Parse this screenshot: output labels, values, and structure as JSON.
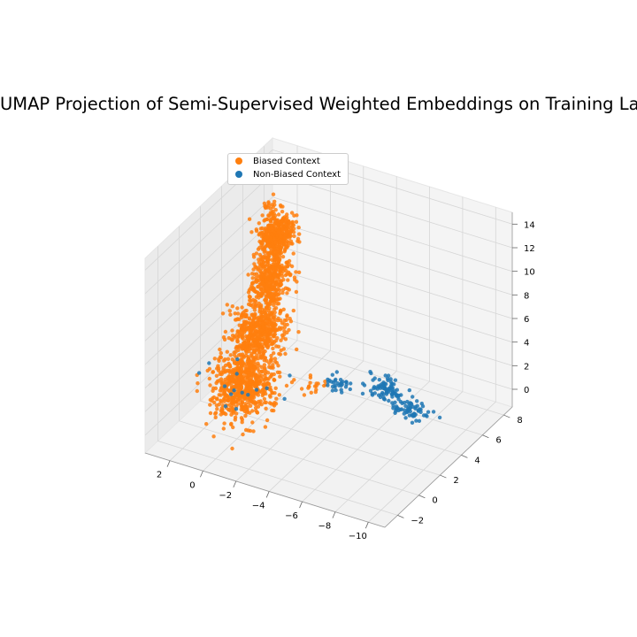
{
  "chart_data": {
    "type": "scatter",
    "title": "UMAP Projection of Semi-Supervised Weighted Embeddings on Training Labels",
    "xlabel": "",
    "ylabel": "",
    "zlabel": "",
    "xlim": [
      -11,
      3.5
    ],
    "ylim": [
      -3.2,
      8.8
    ],
    "zlim": [
      -1.5,
      15
    ],
    "x_ticks": [
      -10,
      -8,
      -6,
      -4,
      -2,
      0,
      2
    ],
    "y_ticks": [
      -2,
      0,
      2,
      4,
      6,
      8
    ],
    "z_ticks": [
      0,
      2,
      4,
      6,
      8,
      10,
      12,
      14
    ],
    "grid": true,
    "legend_position": "upper-left",
    "series": [
      {
        "name": "Biased Context",
        "color": "#ff7f0e",
        "clusters": [
          {
            "center": [
              0.5,
              1.5,
              1.5
            ],
            "spread": [
              0.8,
              0.9,
              1.2
            ],
            "n": 650
          },
          {
            "center": [
              1.3,
              4.0,
              3.5
            ],
            "spread": [
              0.6,
              0.8,
              1.0
            ],
            "n": 520
          },
          {
            "center": [
              1.9,
              6.0,
              6.0
            ],
            "spread": [
              0.4,
              0.7,
              1.0
            ],
            "n": 380
          },
          {
            "center": [
              2.3,
              7.3,
              8.7
            ],
            "spread": [
              0.4,
              0.5,
              0.8
            ],
            "n": 360
          },
          {
            "center": [
              3.0,
              8.0,
              6.5
            ],
            "spread": [
              0.3,
              0.3,
              1.0
            ],
            "n": 80
          },
          {
            "center": [
              2.5,
              6.8,
              11.5
            ],
            "spread": [
              0.2,
              0.2,
              0.6
            ],
            "n": 18
          },
          {
            "center": [
              -3.8,
              1.3,
              3.5
            ],
            "spread": [
              0.3,
              0.3,
              0.4
            ],
            "n": 18
          }
        ]
      },
      {
        "name": "Non-Biased Context",
        "color": "#1f77b4",
        "clusters": [
          {
            "center": [
              -7.8,
              1.8,
              4.6
            ],
            "spread": [
              0.55,
              0.3,
              0.3
            ],
            "n": 80
          },
          {
            "center": [
              -9.7,
              1.3,
              4.0
            ],
            "spread": [
              0.55,
              0.3,
              0.3
            ],
            "n": 70
          },
          {
            "center": [
              -5.0,
              1.6,
              4.0
            ],
            "spread": [
              0.35,
              0.25,
              0.25
            ],
            "n": 30
          },
          {
            "center": [
              0.5,
              1.5,
              1.5
            ],
            "spread": [
              0.8,
              0.9,
              1.2
            ],
            "n": 15
          }
        ]
      }
    ]
  }
}
